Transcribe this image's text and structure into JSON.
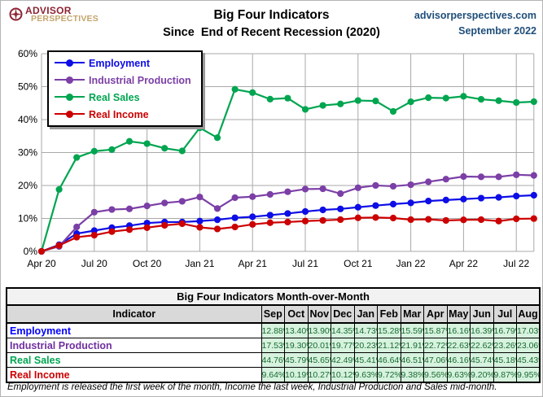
{
  "header": {
    "logo_line1": "ADVISOR",
    "logo_line2": "PERSPECTIVES",
    "title_line1": "Big Four Indicators",
    "title_line2": "Since  End of Recent Recession (2020)",
    "site": "advisorperspectives.com",
    "date": "September 2022",
    "accent_color": "#1f4e79",
    "logo_color_primary": "#8c2332",
    "logo_color_secondary": "#c3a46b"
  },
  "chart_data": {
    "type": "line",
    "title": "Big Four Indicators Since End of Recent Recession (2020)",
    "xlabel": "",
    "ylabel": "",
    "ylim": [
      0,
      60
    ],
    "grid": true,
    "legend_position": "top-left",
    "y_tick_labels": [
      "0%",
      "10%",
      "20%",
      "30%",
      "40%",
      "50%",
      "60%"
    ],
    "x_tick_labels": [
      "Apr 20",
      "Jul 20",
      "Oct 20",
      "Jan 21",
      "Apr 21",
      "Jul 21",
      "Oct 21",
      "Jan 22",
      "Apr 22",
      "Jul 22"
    ],
    "x": [
      "Apr 2020",
      "May 2020",
      "Jun 2020",
      "Jul 2020",
      "Aug 2020",
      "Sep 2020",
      "Oct 2020",
      "Nov 2020",
      "Dec 2020",
      "Jan 2021",
      "Feb 2021",
      "Mar 2021",
      "Apr 2021",
      "May 2021",
      "Jun 2021",
      "Jul 2021",
      "Aug 2021",
      "Sep 2021",
      "Oct 2021",
      "Nov 2021",
      "Dec 2021",
      "Jan 2022",
      "Feb 2022",
      "Mar 2022",
      "Apr 2022",
      "May 2022",
      "Jun 2022",
      "Jul 2022",
      "Aug 2022"
    ],
    "series": [
      {
        "name": "Employment",
        "color": "#0d0de6",
        "values": [
          0,
          2.0,
          5.4,
          6.3,
          7.2,
          7.8,
          8.6,
          8.9,
          8.9,
          9.2,
          9.6,
          10.2,
          10.5,
          11.0,
          11.5,
          12.1,
          12.6,
          12.88,
          13.4,
          13.9,
          14.35,
          14.73,
          15.28,
          15.59,
          15.87,
          16.16,
          16.39,
          16.79,
          17.03
        ]
      },
      {
        "name": "Industrial Production",
        "color": "#7b3fa6",
        "values": [
          0,
          1.5,
          7.4,
          11.9,
          12.7,
          12.9,
          13.8,
          14.7,
          15.2,
          16.5,
          13.0,
          16.3,
          16.6,
          17.3,
          18.1,
          18.9,
          19.0,
          17.53,
          19.3,
          20.01,
          19.77,
          20.23,
          21.12,
          21.91,
          22.72,
          22.63,
          22.62,
          23.26,
          23.06
        ]
      },
      {
        "name": "Real Sales",
        "color": "#00a550",
        "values": [
          0,
          18.8,
          28.5,
          30.4,
          30.9,
          33.4,
          32.7,
          31.3,
          30.5,
          37.5,
          34.5,
          49.2,
          48.2,
          46.2,
          46.5,
          43.1,
          44.3,
          44.76,
          45.79,
          45.65,
          42.49,
          45.41,
          46.64,
          46.51,
          47.06,
          46.16,
          45.74,
          45.18,
          45.43
        ]
      },
      {
        "name": "Real Income",
        "color": "#cc0000",
        "values": [
          0,
          1.8,
          4.3,
          4.9,
          6.0,
          6.6,
          7.2,
          7.9,
          8.4,
          7.3,
          6.8,
          7.4,
          8.2,
          8.7,
          8.9,
          9.2,
          9.4,
          9.64,
          10.19,
          10.27,
          10.12,
          9.63,
          9.72,
          9.38,
          9.56,
          9.63,
          9.2,
          9.87,
          9.95
        ]
      }
    ]
  },
  "table": {
    "title": "Big Four Indicators Month-over-Month",
    "columns": [
      "Indicator",
      "Sep",
      "Oct",
      "Nov",
      "Dec",
      "Jan",
      "Feb",
      "Mar",
      "Apr",
      "May",
      "Jun",
      "Jul",
      "Aug"
    ],
    "rows": [
      {
        "label": "Employment",
        "color": "#0000ff",
        "values": [
          "12.88%",
          "13.40%",
          "13.90%",
          "14.35%",
          "14.73%",
          "15.28%",
          "15.59%",
          "15.87%",
          "16.16%",
          "16.39%",
          "16.79%",
          "17.03%"
        ]
      },
      {
        "label": "Industrial Production",
        "color": "#7030a0",
        "values": [
          "17.53%",
          "19.30%",
          "20.01%",
          "19.77%",
          "20.23%",
          "21.12%",
          "21.91%",
          "22.72%",
          "22.63%",
          "22.62%",
          "23.26%",
          "23.06%"
        ]
      },
      {
        "label": "Real Sales",
        "color": "#00a550",
        "values": [
          "44.76%",
          "45.79%",
          "45.65%",
          "42.49%",
          "45.41%",
          "46.64%",
          "46.51%",
          "47.06%",
          "46.16%",
          "45.74%",
          "45.18%",
          "45.43%"
        ]
      },
      {
        "label": "Real Income",
        "color": "#cc0000",
        "values": [
          "9.64%",
          "10.19%",
          "10.27%",
          "10.12%",
          "9.63%",
          "9.72%",
          "9.38%",
          "9.56%",
          "9.63%",
          "9.20%",
          "9.87%",
          "9.95%"
        ]
      }
    ],
    "value_cell_bg": "#d7f2de",
    "value_cell_text": "#156b30"
  },
  "footnote": "Employment is released the first week of the month, Income the last week, Industrial Production and Sales mid-month."
}
